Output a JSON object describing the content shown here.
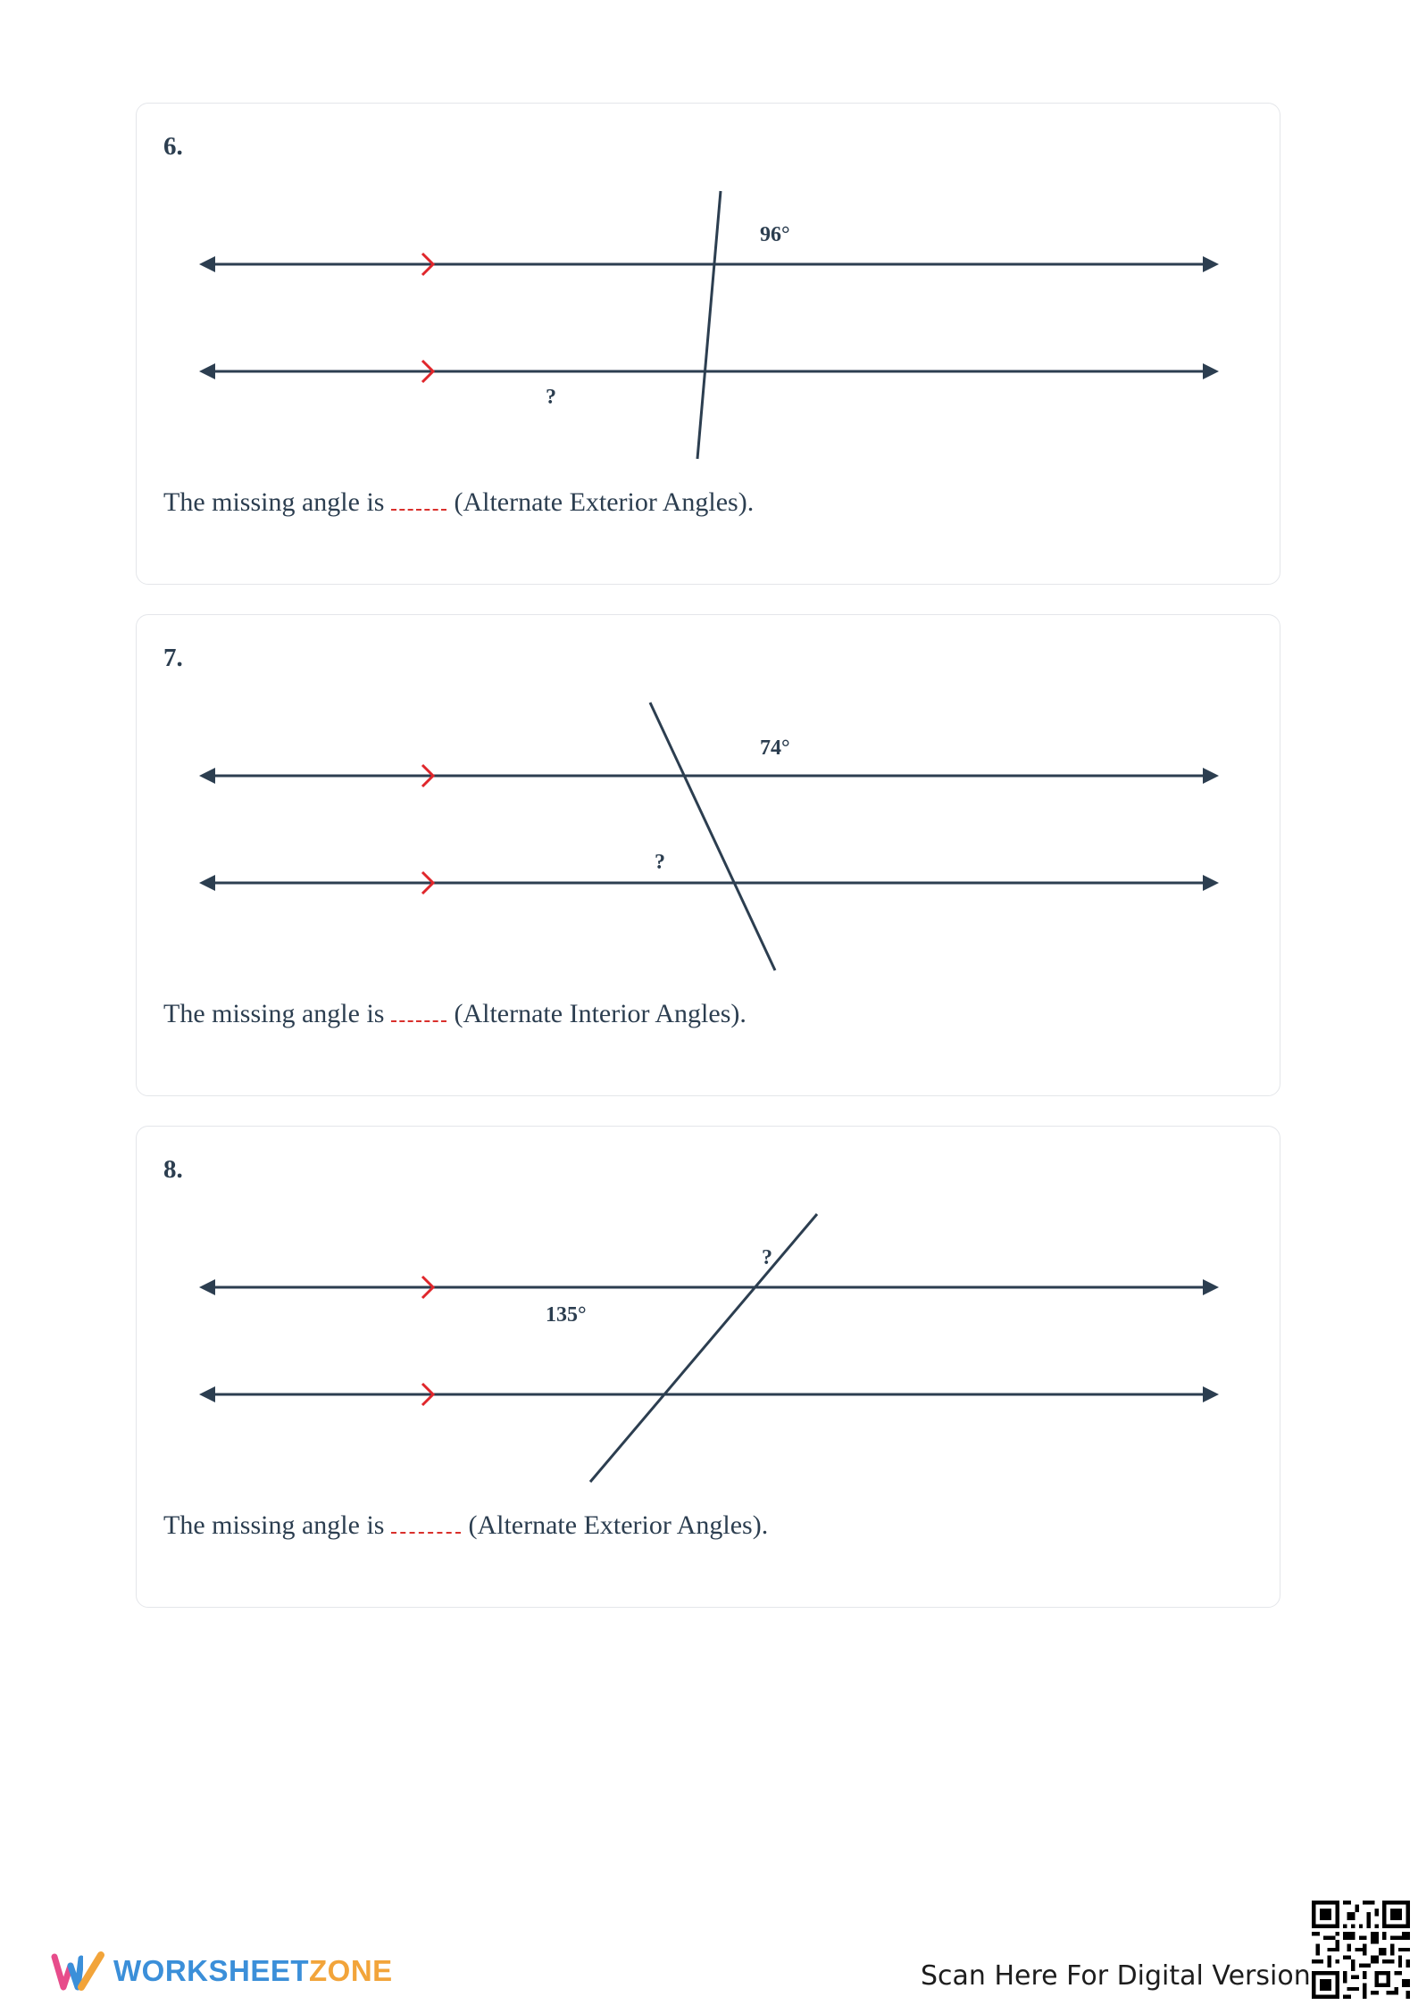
{
  "questions": [
    {
      "number": "6.",
      "given_angle": "96°",
      "unknown_label": "?",
      "sentence_before": "The missing angle is",
      "sentence_after": "(Alternate Exterior Angles)."
    },
    {
      "number": "7.",
      "given_angle": "74°",
      "unknown_label": "?",
      "sentence_before": "The missing angle is",
      "sentence_after": "(Alternate Interior Angles)."
    },
    {
      "number": "8.",
      "given_angle": "135°",
      "unknown_label": "?",
      "sentence_before": "The missing angle is",
      "sentence_after": "(Alternate Exterior Angles)."
    }
  ],
  "footer": {
    "logo_part1": "WORKSHEET",
    "logo_part2": "ZONE",
    "scan_text": "Scan Here For Digital Version"
  },
  "colors": {
    "line": "#2c3e50",
    "parallel_marker": "#e0262b",
    "blank_dash": "#d9302c",
    "logo_blue": "#3b8fd9",
    "logo_orange": "#f2a43a"
  }
}
